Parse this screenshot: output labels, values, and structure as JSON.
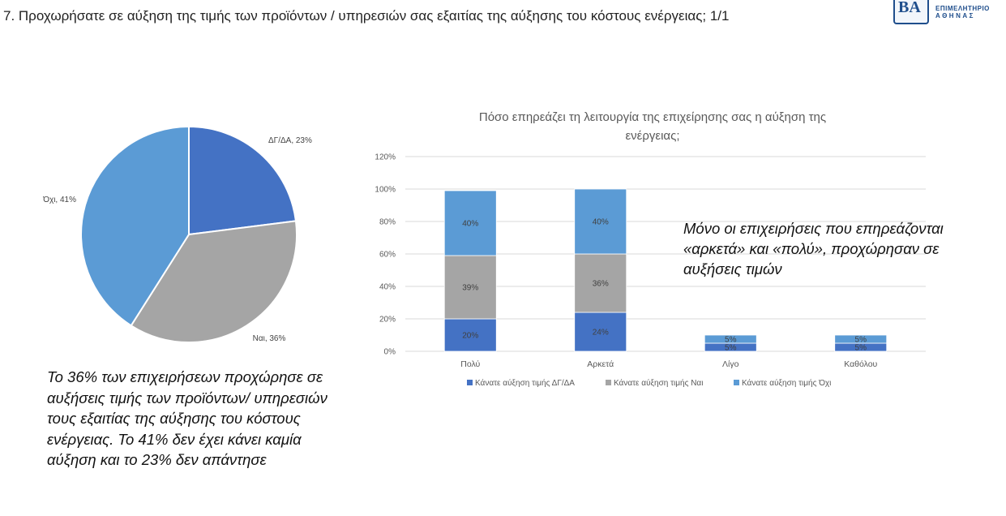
{
  "header": {
    "title": "7. Προχωρήσατε σε αύξηση της τιμής των προϊόντων / υπηρεσιών σας εξαιτίας της αύξησης του κόστους ενέργειας;  1/1"
  },
  "logo": {
    "mark": "ΒΑ",
    "line1": "ΕΠΙΜΕΛΗΤΗΡΙΟ",
    "line2": "ΑΘΗΝΑΣ"
  },
  "summary": {
    "text": "Το 36% των επιχειρήσεων προχώρησε σε αυξήσεις τιμής των προϊόντων/ υπηρεσιών τους εξαιτίας της αύξησης του κόστους ενέργειας. Το 41% δεν έχει κάνει καμία αύξηση και το 23% δεν απάντησε"
  },
  "note": {
    "text": "Μόνο οι επιχειρήσεις που επηρεάζονται «αρκετά» και «πολύ», προχώρησαν σε αυξήσεις τιμών"
  },
  "colors": {
    "dgda": "#4472c4",
    "nai": "#a5a5a5",
    "oxi": "#5b9bd5",
    "grid": "#d9d9d9"
  },
  "chart_data": [
    {
      "type": "pie",
      "title": "",
      "slices": [
        {
          "label": "ΔΓ/ΔΑ",
          "value": 23,
          "display": "ΔΓ/ΔΑ, 23%",
          "color": "#4472c4"
        },
        {
          "label": "Ναι",
          "value": 36,
          "display": "Ναι, 36%",
          "color": "#a5a5a5"
        },
        {
          "label": "Όχι",
          "value": 41,
          "display": "Όχι, 41%",
          "color": "#5b9bd5"
        }
      ]
    },
    {
      "type": "bar",
      "stacked": true,
      "title_lines": [
        "Πόσο επηρεάζει τη λειτουργία της επιχείρησης σας η αύξηση της",
        "ενέργειας;"
      ],
      "categories": [
        "Πολύ",
        "Αρκετά",
        "Λίγο",
        "Καθόλου"
      ],
      "ylim": [
        0,
        120
      ],
      "yticks": [
        "0%",
        "20%",
        "40%",
        "60%",
        "80%",
        "100%",
        "120%"
      ],
      "grid": true,
      "legend_position": "bottom",
      "series": [
        {
          "name": "Κάνατε αύξηση τιμής ΔΓ/ΔΑ",
          "values": [
            20,
            24,
            5,
            5
          ],
          "labels": [
            "20%",
            "24%",
            "5%",
            "5%"
          ],
          "color": "#4472c4"
        },
        {
          "name": "Κάνατε αύξηση τιμής Ναι",
          "values": [
            39,
            36,
            0,
            0
          ],
          "labels": [
            "39%",
            "36%",
            "",
            ""
          ],
          "color": "#a5a5a5"
        },
        {
          "name": "Κάνατε αύξηση τιμής Όχι",
          "values": [
            40,
            40,
            5,
            5
          ],
          "labels": [
            "40%",
            "40%",
            "5%",
            "5%"
          ],
          "color": "#5b9bd5"
        }
      ]
    }
  ]
}
